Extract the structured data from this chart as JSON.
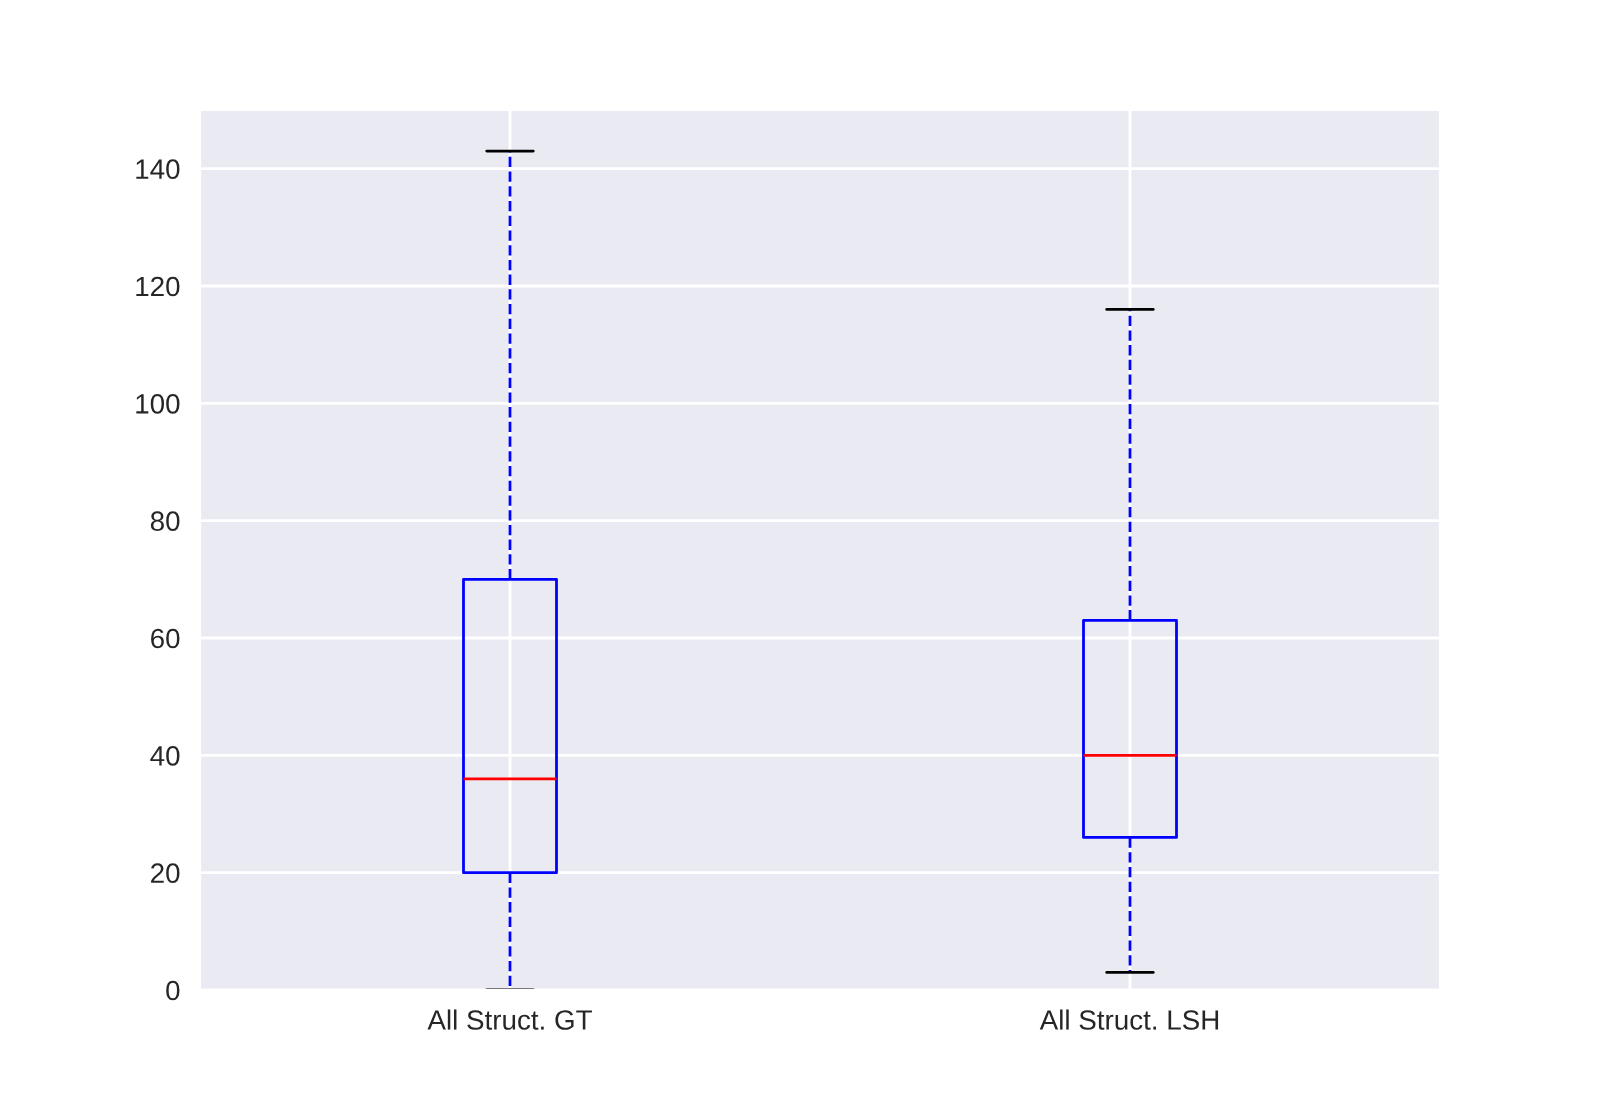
{
  "chart_data": {
    "type": "box",
    "categories": [
      "All Struct. GT",
      "All Struct. LSH"
    ],
    "boxes": [
      {
        "low": 0,
        "q1": 20,
        "median": 36,
        "q3": 70,
        "high": 143
      },
      {
        "low": 3,
        "q1": 26,
        "median": 40,
        "q3": 63,
        "high": 116
      }
    ],
    "color": "#0000ff",
    "ylim": [
      0,
      150
    ],
    "yticks": [
      0,
      20,
      40,
      60,
      80,
      100,
      120,
      140
    ],
    "grid": true
  }
}
